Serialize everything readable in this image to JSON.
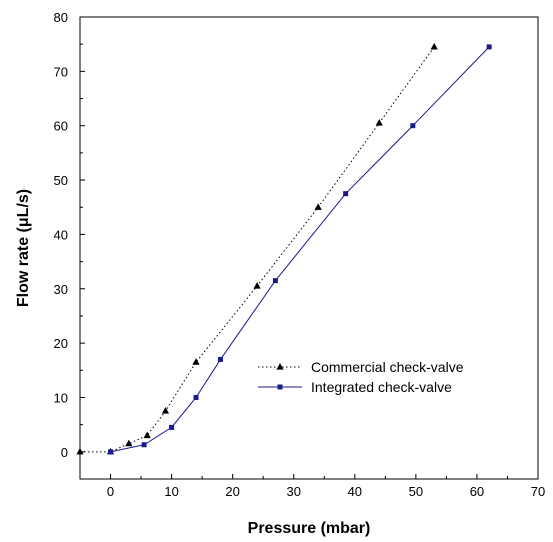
{
  "chart_data": {
    "type": "line",
    "title": "",
    "xlabel": "Pressure (mbar)",
    "ylabel": "Flow rate (μL/s)",
    "xlim": [
      -5,
      70
    ],
    "ylim": [
      -5,
      80
    ],
    "xticks": [
      0,
      10,
      20,
      30,
      40,
      50,
      60,
      70
    ],
    "yticks": [
      0,
      10,
      20,
      30,
      40,
      50,
      60,
      70,
      80
    ],
    "grid": false,
    "legend_position": "lower-right",
    "series": [
      {
        "name": "Commercial check-valve",
        "marker": "triangle",
        "line_style": "dotted",
        "color": "#000000",
        "x": [
          -5,
          0,
          3,
          6,
          9,
          14,
          24,
          34,
          44,
          53
        ],
        "y": [
          0,
          0,
          1.5,
          3,
          7.5,
          16.5,
          30.5,
          45,
          60.5,
          74.5
        ]
      },
      {
        "name": "Integrated check-valve",
        "marker": "square",
        "line_style": "solid",
        "color": "#1a1a8c",
        "x": [
          0,
          5.5,
          10,
          14,
          18,
          27,
          38.5,
          49.5,
          62
        ],
        "y": [
          0,
          1.3,
          4.5,
          10,
          17,
          31.5,
          47.5,
          60,
          74.5
        ]
      }
    ]
  }
}
